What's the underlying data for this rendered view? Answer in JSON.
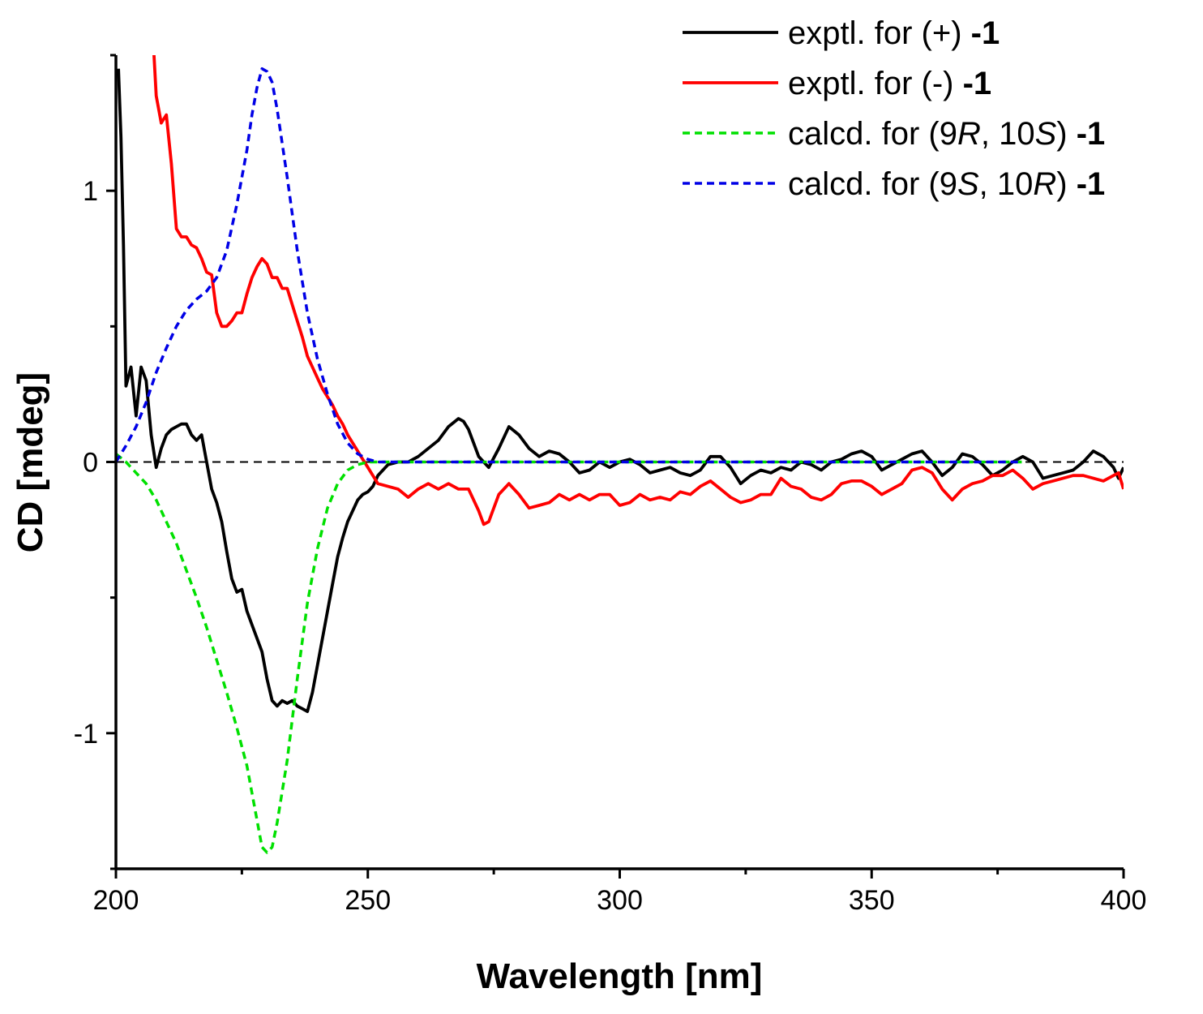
{
  "chart_data": {
    "type": "line",
    "title": "",
    "xlabel": "Wavelength [nm]",
    "ylabel": "CD [mdeg]",
    "xlim": [
      200,
      400
    ],
    "ylim": [
      -1.5,
      1.5
    ],
    "x_ticks": [
      200,
      250,
      300,
      350,
      400
    ],
    "x_tick_labels": [
      "200",
      "250",
      "300",
      "350",
      "400"
    ],
    "y_ticks": [
      -1,
      0,
      1
    ],
    "y_tick_labels": [
      "-1",
      "0",
      "1"
    ],
    "zero_line": true,
    "legend_position": "top-right",
    "series": [
      {
        "name": "exptl. for (+) -1",
        "legend": {
          "prefix": "exptl. for (+) ",
          "bold": "-1",
          "parts": []
        },
        "color": "#000000",
        "dash": "solid",
        "x": [
          200.5,
          201,
          201.5,
          202,
          203,
          204,
          205,
          206,
          207,
          208,
          209,
          210,
          211,
          212,
          213,
          214,
          215,
          216,
          217,
          218,
          219,
          220,
          221,
          222,
          223,
          224,
          225,
          226,
          227,
          228,
          229,
          230,
          231,
          232,
          233,
          234,
          235,
          236,
          237,
          238,
          239,
          240,
          241,
          242,
          243,
          244,
          245,
          246,
          247,
          248,
          249,
          250,
          251,
          252,
          254,
          256,
          258,
          260,
          262,
          264,
          266,
          268,
          269,
          270,
          272,
          274,
          276,
          278,
          280,
          282,
          284,
          286,
          288,
          290,
          292,
          294,
          296,
          298,
          300,
          302,
          304,
          306,
          308,
          310,
          312,
          314,
          316,
          318,
          320,
          322,
          324,
          326,
          328,
          330,
          332,
          334,
          336,
          338,
          340,
          342,
          344,
          346,
          348,
          350,
          352,
          354,
          356,
          358,
          360,
          362,
          364,
          366,
          368,
          370,
          372,
          374,
          376,
          378,
          380,
          382,
          384,
          386,
          388,
          390,
          392,
          394,
          396,
          398,
          399,
          400
        ],
        "y": [
          1.45,
          1.2,
          0.8,
          0.28,
          0.35,
          0.17,
          0.35,
          0.3,
          0.1,
          -0.02,
          0.05,
          0.1,
          0.12,
          0.13,
          0.14,
          0.14,
          0.1,
          0.08,
          0.1,
          0.0,
          -0.1,
          -0.15,
          -0.22,
          -0.33,
          -0.43,
          -0.48,
          -0.47,
          -0.55,
          -0.6,
          -0.65,
          -0.7,
          -0.8,
          -0.88,
          -0.9,
          -0.88,
          -0.89,
          -0.88,
          -0.9,
          -0.91,
          -0.92,
          -0.85,
          -0.75,
          -0.65,
          -0.55,
          -0.45,
          -0.35,
          -0.28,
          -0.22,
          -0.18,
          -0.14,
          -0.12,
          -0.11,
          -0.09,
          -0.05,
          -0.01,
          0.0,
          0.0,
          0.02,
          0.05,
          0.08,
          0.13,
          0.16,
          0.15,
          0.12,
          0.02,
          -0.02,
          0.05,
          0.13,
          0.1,
          0.05,
          0.02,
          0.04,
          0.03,
          0.0,
          -0.04,
          -0.03,
          0.0,
          -0.02,
          0.0,
          0.01,
          -0.01,
          -0.04,
          -0.03,
          -0.02,
          -0.04,
          -0.05,
          -0.03,
          0.02,
          0.02,
          -0.02,
          -0.08,
          -0.05,
          -0.03,
          -0.04,
          -0.02,
          -0.03,
          0.0,
          -0.01,
          -0.03,
          0.0,
          0.01,
          0.03,
          0.04,
          0.02,
          -0.03,
          -0.01,
          0.01,
          0.03,
          0.04,
          0.0,
          -0.05,
          -0.02,
          0.03,
          0.02,
          -0.01,
          -0.05,
          -0.03,
          0.0,
          0.02,
          0.0,
          -0.06,
          -0.05,
          -0.04,
          -0.03,
          0.0,
          0.04,
          0.02,
          -0.02,
          -0.06,
          -0.02
        ]
      },
      {
        "name": "exptl. for (-) -1",
        "legend": {
          "prefix": "exptl. for (-) ",
          "bold": "-1",
          "parts": []
        },
        "color": "#ff0000",
        "dash": "solid",
        "x": [
          207.5,
          208,
          209,
          210,
          211,
          212,
          213,
          214,
          215,
          216,
          217,
          218,
          219,
          220,
          221,
          222,
          223,
          224,
          225,
          226,
          227,
          228,
          229,
          230,
          231,
          232,
          233,
          234,
          235,
          236,
          237,
          238,
          239,
          240,
          241,
          242,
          243,
          244,
          245,
          246,
          247,
          248,
          249,
          250,
          251,
          252,
          254,
          256,
          258,
          260,
          262,
          264,
          266,
          268,
          270,
          272,
          273,
          274,
          276,
          278,
          280,
          282,
          284,
          286,
          288,
          290,
          292,
          294,
          296,
          298,
          300,
          302,
          304,
          306,
          308,
          310,
          312,
          314,
          316,
          318,
          320,
          322,
          324,
          326,
          328,
          330,
          332,
          334,
          336,
          338,
          340,
          342,
          344,
          346,
          348,
          350,
          352,
          354,
          356,
          358,
          360,
          362,
          364,
          366,
          368,
          370,
          372,
          374,
          376,
          378,
          380,
          382,
          384,
          386,
          388,
          390,
          392,
          394,
          396,
          398,
          399,
          400
        ],
        "y": [
          1.52,
          1.35,
          1.25,
          1.28,
          1.1,
          0.86,
          0.83,
          0.83,
          0.8,
          0.79,
          0.75,
          0.7,
          0.69,
          0.55,
          0.5,
          0.5,
          0.52,
          0.55,
          0.55,
          0.62,
          0.68,
          0.72,
          0.75,
          0.73,
          0.68,
          0.68,
          0.64,
          0.64,
          0.58,
          0.52,
          0.46,
          0.39,
          0.35,
          0.31,
          0.27,
          0.24,
          0.21,
          0.17,
          0.14,
          0.1,
          0.07,
          0.04,
          0.01,
          -0.02,
          -0.05,
          -0.08,
          -0.09,
          -0.1,
          -0.13,
          -0.1,
          -0.08,
          -0.1,
          -0.08,
          -0.1,
          -0.1,
          -0.18,
          -0.23,
          -0.22,
          -0.12,
          -0.08,
          -0.12,
          -0.17,
          -0.16,
          -0.15,
          -0.12,
          -0.14,
          -0.12,
          -0.14,
          -0.12,
          -0.12,
          -0.16,
          -0.15,
          -0.12,
          -0.14,
          -0.13,
          -0.14,
          -0.11,
          -0.12,
          -0.09,
          -0.07,
          -0.1,
          -0.13,
          -0.15,
          -0.14,
          -0.12,
          -0.12,
          -0.06,
          -0.09,
          -0.1,
          -0.13,
          -0.14,
          -0.12,
          -0.08,
          -0.07,
          -0.07,
          -0.09,
          -0.12,
          -0.1,
          -0.08,
          -0.03,
          -0.02,
          -0.04,
          -0.1,
          -0.14,
          -0.1,
          -0.08,
          -0.07,
          -0.05,
          -0.05,
          -0.03,
          -0.06,
          -0.1,
          -0.08,
          -0.07,
          -0.06,
          -0.05,
          -0.05,
          -0.06,
          -0.07,
          -0.05,
          -0.04,
          -0.1
        ]
      },
      {
        "name": "calcd. for (9R, 10S) -1",
        "legend": {
          "prefix": "",
          "bold": "-1",
          "parts": [
            [
              "calcd. for (9",
              "n"
            ],
            [
              "R",
              "i"
            ],
            [
              ", 10",
              "n"
            ],
            [
              "S",
              "i"
            ],
            [
              ") ",
              "n"
            ]
          ]
        },
        "color": "#00e000",
        "dash": "dashed",
        "x": [
          200,
          202,
          204,
          206,
          208,
          210,
          212,
          214,
          216,
          218,
          220,
          222,
          224,
          226,
          227,
          228,
          229,
          230,
          231,
          232,
          234,
          236,
          238,
          240,
          242,
          244,
          246,
          248,
          250,
          252,
          255,
          260,
          270,
          280,
          300,
          320,
          340,
          360,
          380
        ],
        "y": [
          0.03,
          0.0,
          -0.04,
          -0.08,
          -0.14,
          -0.22,
          -0.3,
          -0.4,
          -0.5,
          -0.61,
          -0.73,
          -0.85,
          -0.98,
          -1.12,
          -1.22,
          -1.32,
          -1.42,
          -1.44,
          -1.42,
          -1.33,
          -1.1,
          -0.8,
          -0.52,
          -0.32,
          -0.17,
          -0.08,
          -0.03,
          -0.01,
          0.0,
          0.0,
          0.0,
          0.0,
          0.0,
          0.0,
          0.0,
          0.0,
          0.0,
          0.0,
          0.0
        ]
      },
      {
        "name": "calcd. for (9S, 10R) -1",
        "legend": {
          "prefix": "",
          "bold": "-1",
          "parts": [
            [
              "calcd. for (9",
              "n"
            ],
            [
              "S",
              "i"
            ],
            [
              ", 10",
              "n"
            ],
            [
              "R",
              "i"
            ],
            [
              ") ",
              "n"
            ]
          ]
        },
        "color": "#0000e6",
        "dash": "dashed",
        "x": [
          200,
          202,
          204,
          206,
          208,
          210,
          212,
          214,
          216,
          218,
          220,
          222,
          224,
          226,
          227,
          228,
          229,
          230,
          231,
          232,
          234,
          236,
          238,
          240,
          242,
          244,
          246,
          248,
          250,
          252,
          255,
          260,
          270,
          280,
          300,
          320,
          340,
          360,
          380
        ],
        "y": [
          0.0,
          0.06,
          0.13,
          0.22,
          0.33,
          0.42,
          0.5,
          0.56,
          0.6,
          0.63,
          0.68,
          0.78,
          0.95,
          1.15,
          1.28,
          1.38,
          1.45,
          1.44,
          1.4,
          1.3,
          1.05,
          0.78,
          0.55,
          0.38,
          0.25,
          0.14,
          0.07,
          0.03,
          0.01,
          0.0,
          0.0,
          0.0,
          0.0,
          0.0,
          0.0,
          0.0,
          0.0,
          0.0,
          0.0
        ]
      }
    ]
  }
}
